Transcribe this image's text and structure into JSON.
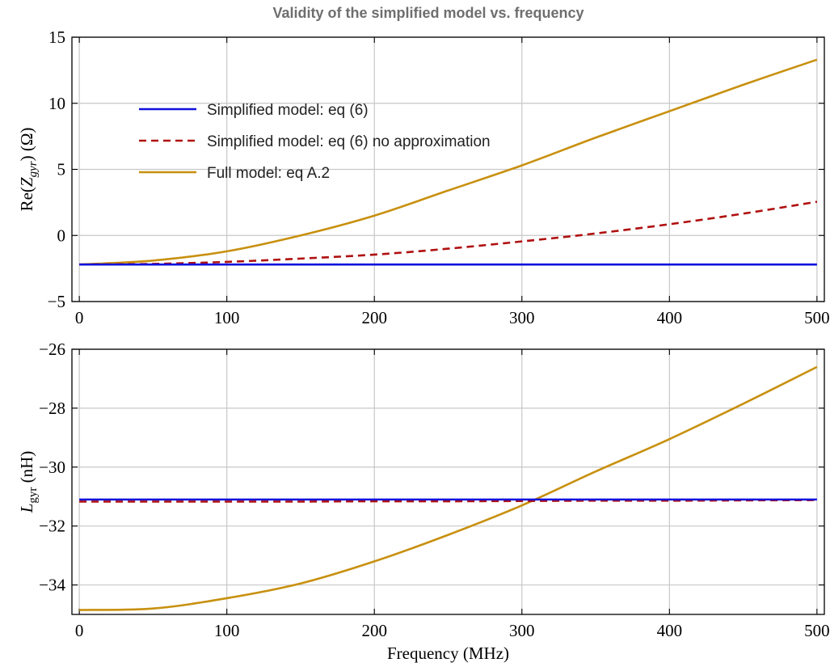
{
  "title": "Validity of the simplified model vs. frequency",
  "colors": {
    "blue": "#1010dd",
    "red": "#b01010",
    "gold": "#c8900f"
  },
  "legend": [
    {
      "label": "Simplified model: eq (6)",
      "color": "#1010dd",
      "dash": ""
    },
    {
      "label": "Simplified model: eq (6) no approximation",
      "color": "#b01010",
      "dash": "9,6"
    },
    {
      "label": "Full model: eq A.2",
      "color": "#c8900f",
      "dash": ""
    }
  ],
  "chart_data": [
    {
      "type": "line",
      "xlabel": "",
      "ylabel_parts": {
        "prefix": "Re(",
        "sym": "Z",
        "sub": "gyr",
        "suffix": ")  (Ω)"
      },
      "xlim": [
        -5,
        505
      ],
      "ylim": [
        -5,
        15
      ],
      "xticks": [
        0,
        100,
        200,
        300,
        400,
        500
      ],
      "yticks": [
        -5,
        0,
        5,
        10,
        15
      ],
      "grid": true,
      "legend_position": "top-left",
      "x": [
        0,
        50,
        100,
        150,
        200,
        250,
        300,
        350,
        400,
        450,
        500
      ],
      "series": [
        {
          "name": "Simplified model: eq (6)",
          "color": "#1010dd",
          "dash": "",
          "values": [
            -2.2,
            -2.2,
            -2.2,
            -2.2,
            -2.2,
            -2.2,
            -2.2,
            -2.2,
            -2.2,
            -2.2,
            -2.2
          ]
        },
        {
          "name": "Simplified model: eq (6) no approximation",
          "color": "#b01010",
          "dash": "9,6",
          "values": [
            -2.2,
            -2.15,
            -2.0,
            -1.75,
            -1.45,
            -1.0,
            -0.45,
            0.15,
            0.85,
            1.65,
            2.55
          ]
        },
        {
          "name": "Full model: eq A.2",
          "color": "#c8900f",
          "dash": "",
          "values": [
            -2.2,
            -1.9,
            -1.2,
            0.0,
            1.5,
            3.4,
            5.3,
            7.4,
            9.4,
            11.4,
            13.3
          ]
        }
      ]
    },
    {
      "type": "line",
      "xlabel": "Frequency (MHz)",
      "ylabel_parts": {
        "sym": "L",
        "sub": "gyr",
        "suffix": "  (nH)"
      },
      "xlim": [
        -5,
        505
      ],
      "ylim": [
        -35,
        -26
      ],
      "xticks": [
        0,
        100,
        200,
        300,
        400,
        500
      ],
      "yticks": [
        -34,
        -32,
        -30,
        -28,
        -26
      ],
      "grid": true,
      "x": [
        0,
        50,
        100,
        150,
        200,
        250,
        300,
        350,
        400,
        450,
        500
      ],
      "series": [
        {
          "name": "Simplified model: eq (6)",
          "color": "#1010dd",
          "dash": "",
          "values": [
            -31.1,
            -31.1,
            -31.1,
            -31.1,
            -31.1,
            -31.1,
            -31.1,
            -31.1,
            -31.1,
            -31.1,
            -31.1
          ]
        },
        {
          "name": "Simplified model: eq (6) no approximation",
          "color": "#b01010",
          "dash": "9,6",
          "values": [
            -31.17,
            -31.17,
            -31.17,
            -31.17,
            -31.16,
            -31.16,
            -31.15,
            -31.14,
            -31.14,
            -31.13,
            -31.12
          ]
        },
        {
          "name": "Full model: eq A.2",
          "color": "#c8900f",
          "dash": "",
          "values": [
            -34.85,
            -34.8,
            -34.45,
            -33.95,
            -33.2,
            -32.3,
            -31.3,
            -30.15,
            -29.05,
            -27.85,
            -26.6
          ]
        }
      ]
    }
  ]
}
